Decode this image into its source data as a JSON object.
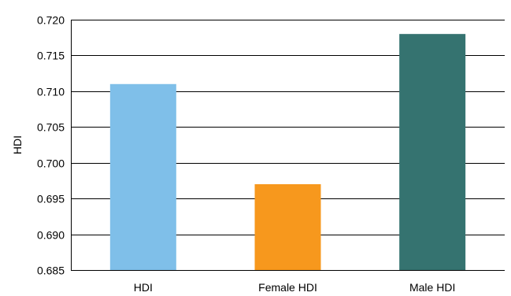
{
  "chart_data": {
    "type": "bar",
    "title": "",
    "xlabel": "",
    "ylabel": "HDI",
    "categories": [
      "HDI",
      "Female HDI",
      "Male HDI"
    ],
    "values": [
      0.711,
      0.697,
      0.718
    ],
    "ylim": [
      0.685,
      0.72
    ],
    "yticks": [
      0.685,
      0.69,
      0.695,
      0.7,
      0.705,
      0.71,
      0.715,
      0.72
    ],
    "ytick_labels": [
      "0.685",
      "0.690",
      "0.695",
      "0.700",
      "0.705",
      "0.710",
      "0.715",
      "0.720"
    ],
    "grid": true,
    "legend": "none",
    "bar_colors": [
      "#7fbfe9",
      "#f7981d",
      "#357370"
    ]
  }
}
